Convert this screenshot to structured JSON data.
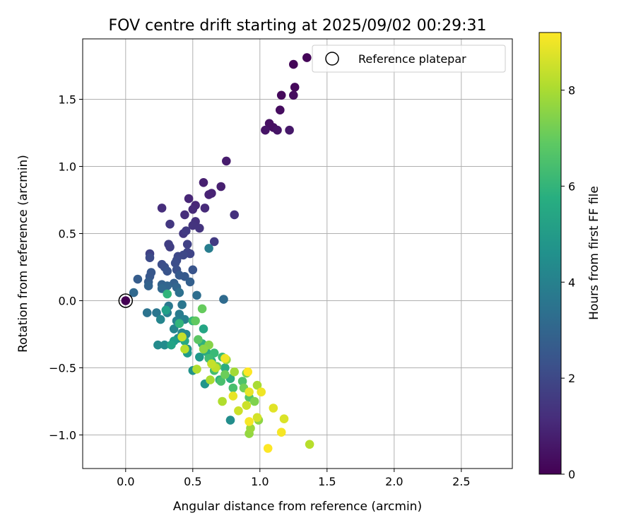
{
  "chart_data": {
    "type": "scatter",
    "title": "FOV centre drift starting at 2025/09/02 00:29:31",
    "xlabel": "Angular distance from reference (arcmin)",
    "ylabel": "Rotation from reference (arcmin)",
    "xlim": [
      -0.32,
      2.88
    ],
    "ylim": [
      -1.25,
      1.95
    ],
    "xticks": [
      0.0,
      0.5,
      1.0,
      1.5,
      2.0,
      2.5
    ],
    "xtick_labels": [
      "0.0",
      "0.5",
      "1.0",
      "1.5",
      "2.0",
      "2.5"
    ],
    "yticks": [
      -1.0,
      -0.5,
      0.0,
      0.5,
      1.0,
      1.5
    ],
    "ytick_labels": [
      "−1.0",
      "−0.5",
      "0.0",
      "0.5",
      "1.0",
      "1.5"
    ],
    "grid": true,
    "colormap": "viridis",
    "colorbar": {
      "label": "Hours from first FF file",
      "range": [
        0,
        9.2
      ],
      "ticks": [
        0,
        2,
        4,
        6,
        8
      ],
      "tick_labels": [
        "0",
        "2",
        "4",
        "6",
        "8"
      ]
    },
    "legend": {
      "position": "top-right",
      "entries": [
        "Reference platepar"
      ]
    },
    "reference_point": {
      "x": 0.0,
      "y": 0.0
    },
    "points": [
      {
        "x": 1.35,
        "y": 1.81,
        "h": 0.1
      },
      {
        "x": 1.25,
        "y": 1.76,
        "h": 0.1
      },
      {
        "x": 1.26,
        "y": 1.59,
        "h": 0.2
      },
      {
        "x": 1.16,
        "y": 1.53,
        "h": 0.2
      },
      {
        "x": 1.25,
        "y": 1.53,
        "h": 0.3
      },
      {
        "x": 1.15,
        "y": 1.42,
        "h": 0.3
      },
      {
        "x": 1.07,
        "y": 1.32,
        "h": 0.4
      },
      {
        "x": 1.1,
        "y": 1.29,
        "h": 0.4
      },
      {
        "x": 1.04,
        "y": 1.27,
        "h": 0.5
      },
      {
        "x": 1.13,
        "y": 1.27,
        "h": 0.5
      },
      {
        "x": 1.22,
        "y": 1.27,
        "h": 0.6
      },
      {
        "x": 0.75,
        "y": 1.04,
        "h": 0.7
      },
      {
        "x": 0.58,
        "y": 0.88,
        "h": 0.8
      },
      {
        "x": 0.71,
        "y": 0.85,
        "h": 0.8
      },
      {
        "x": 0.64,
        "y": 0.8,
        "h": 0.9
      },
      {
        "x": 0.62,
        "y": 0.79,
        "h": 0.9
      },
      {
        "x": 0.47,
        "y": 0.76,
        "h": 1.0
      },
      {
        "x": 0.52,
        "y": 0.71,
        "h": 1.0
      },
      {
        "x": 0.5,
        "y": 0.68,
        "h": 1.1
      },
      {
        "x": 0.59,
        "y": 0.69,
        "h": 1.1
      },
      {
        "x": 0.27,
        "y": 0.69,
        "h": 1.2
      },
      {
        "x": 0.44,
        "y": 0.64,
        "h": 1.2
      },
      {
        "x": 0.81,
        "y": 0.64,
        "h": 1.3
      },
      {
        "x": 0.52,
        "y": 0.59,
        "h": 1.3
      },
      {
        "x": 0.5,
        "y": 0.56,
        "h": 1.4
      },
      {
        "x": 0.55,
        "y": 0.54,
        "h": 1.4
      },
      {
        "x": 0.33,
        "y": 0.57,
        "h": 1.5
      },
      {
        "x": 0.43,
        "y": 0.5,
        "h": 1.5
      },
      {
        "x": 0.45,
        "y": 0.52,
        "h": 1.6
      },
      {
        "x": 0.66,
        "y": 0.44,
        "h": 1.6
      },
      {
        "x": 0.32,
        "y": 0.42,
        "h": 1.7
      },
      {
        "x": 0.33,
        "y": 0.4,
        "h": 1.7
      },
      {
        "x": 0.46,
        "y": 0.42,
        "h": 1.8
      },
      {
        "x": 0.18,
        "y": 0.35,
        "h": 1.8
      },
      {
        "x": 0.46,
        "y": 0.36,
        "h": 1.9
      },
      {
        "x": 0.48,
        "y": 0.35,
        "h": 1.9
      },
      {
        "x": 0.43,
        "y": 0.34,
        "h": 2.0
      },
      {
        "x": 0.39,
        "y": 0.33,
        "h": 2.0
      },
      {
        "x": 0.18,
        "y": 0.32,
        "h": 2.1
      },
      {
        "x": 0.38,
        "y": 0.3,
        "h": 2.1
      },
      {
        "x": 0.37,
        "y": 0.28,
        "h": 2.2
      },
      {
        "x": 0.27,
        "y": 0.27,
        "h": 2.2
      },
      {
        "x": 0.29,
        "y": 0.25,
        "h": 2.3
      },
      {
        "x": 0.38,
        "y": 0.23,
        "h": 2.3
      },
      {
        "x": 0.5,
        "y": 0.23,
        "h": 2.4
      },
      {
        "x": 0.31,
        "y": 0.22,
        "h": 2.4
      },
      {
        "x": 0.19,
        "y": 0.21,
        "h": 2.5
      },
      {
        "x": 0.18,
        "y": 0.18,
        "h": 2.5
      },
      {
        "x": 0.4,
        "y": 0.19,
        "h": 2.6
      },
      {
        "x": 0.44,
        "y": 0.18,
        "h": 2.6
      },
      {
        "x": 0.09,
        "y": 0.16,
        "h": 2.7
      },
      {
        "x": 0.17,
        "y": 0.14,
        "h": 2.7
      },
      {
        "x": 0.48,
        "y": 0.14,
        "h": 2.8
      },
      {
        "x": 0.36,
        "y": 0.13,
        "h": 2.8
      },
      {
        "x": 0.27,
        "y": 0.12,
        "h": 2.9
      },
      {
        "x": 0.17,
        "y": 0.11,
        "h": 2.9
      },
      {
        "x": 0.31,
        "y": 0.11,
        "h": 3.0
      },
      {
        "x": 0.38,
        "y": 0.1,
        "h": 3.0
      },
      {
        "x": 0.27,
        "y": 0.09,
        "h": 3.1
      },
      {
        "x": 0.06,
        "y": 0.06,
        "h": 3.1
      },
      {
        "x": 0.73,
        "y": 0.01,
        "h": 3.2
      },
      {
        "x": 0.53,
        "y": 0.04,
        "h": 3.3
      },
      {
        "x": 0.4,
        "y": 0.06,
        "h": 3.4
      },
      {
        "x": 0.16,
        "y": -0.09,
        "h": 3.5
      },
      {
        "x": 0.23,
        "y": -0.09,
        "h": 3.6
      },
      {
        "x": 0.42,
        "y": -0.03,
        "h": 3.6
      },
      {
        "x": 0.32,
        "y": -0.04,
        "h": 3.7
      },
      {
        "x": 0.4,
        "y": -0.1,
        "h": 3.8
      },
      {
        "x": 0.62,
        "y": 0.39,
        "h": 3.9
      },
      {
        "x": 0.31,
        "y": -0.09,
        "h": 4.0
      },
      {
        "x": 0.44,
        "y": -0.14,
        "h": 4.0
      },
      {
        "x": 0.38,
        "y": -0.15,
        "h": 4.1
      },
      {
        "x": 0.26,
        "y": -0.14,
        "h": 4.2
      },
      {
        "x": 0.36,
        "y": -0.21,
        "h": 4.2
      },
      {
        "x": 0.42,
        "y": -0.24,
        "h": 4.3
      },
      {
        "x": 0.45,
        "y": -0.25,
        "h": 4.3
      },
      {
        "x": 0.24,
        "y": -0.33,
        "h": 4.4
      },
      {
        "x": 0.29,
        "y": -0.33,
        "h": 4.4
      },
      {
        "x": 0.39,
        "y": -0.28,
        "h": 4.5
      },
      {
        "x": 0.78,
        "y": -0.89,
        "h": 4.5
      },
      {
        "x": 0.46,
        "y": -0.36,
        "h": 4.6
      },
      {
        "x": 0.5,
        "y": -0.52,
        "h": 4.7
      },
      {
        "x": 0.59,
        "y": -0.62,
        "h": 4.8
      },
      {
        "x": 0.55,
        "y": -0.42,
        "h": 4.9
      },
      {
        "x": 0.46,
        "y": -0.39,
        "h": 5.0
      },
      {
        "x": 0.36,
        "y": -0.3,
        "h": 5.1
      },
      {
        "x": 0.3,
        "y": -0.07,
        "h": 5.2
      },
      {
        "x": 0.34,
        "y": -0.33,
        "h": 5.3
      },
      {
        "x": 0.58,
        "y": -0.21,
        "h": 5.4
      },
      {
        "x": 0.44,
        "y": -0.3,
        "h": 5.5
      },
      {
        "x": 0.64,
        "y": -0.45,
        "h": 5.5
      },
      {
        "x": 0.6,
        "y": -0.38,
        "h": 5.6
      },
      {
        "x": 0.74,
        "y": -0.5,
        "h": 5.7
      },
      {
        "x": 0.78,
        "y": -0.58,
        "h": 5.7
      },
      {
        "x": 0.7,
        "y": -0.59,
        "h": 5.8
      },
      {
        "x": 0.57,
        "y": -0.32,
        "h": 5.9
      },
      {
        "x": 0.31,
        "y": 0.05,
        "h": 6.0
      },
      {
        "x": 0.4,
        "y": -0.17,
        "h": 6.0
      },
      {
        "x": 0.5,
        "y": -0.15,
        "h": 6.1
      },
      {
        "x": 0.66,
        "y": -0.39,
        "h": 6.2
      },
      {
        "x": 0.72,
        "y": -0.42,
        "h": 6.3
      },
      {
        "x": 0.62,
        "y": -0.43,
        "h": 6.3
      },
      {
        "x": 0.66,
        "y": -0.52,
        "h": 6.4
      },
      {
        "x": 0.71,
        "y": -0.6,
        "h": 6.5
      },
      {
        "x": 0.8,
        "y": -0.65,
        "h": 6.5
      },
      {
        "x": 0.87,
        "y": -0.6,
        "h": 6.6
      },
      {
        "x": 0.92,
        "y": -0.72,
        "h": 6.7
      },
      {
        "x": 0.54,
        "y": -0.29,
        "h": 6.8
      },
      {
        "x": 0.52,
        "y": -0.15,
        "h": 6.9
      },
      {
        "x": 0.57,
        "y": -0.06,
        "h": 7.0
      },
      {
        "x": 0.68,
        "y": -0.49,
        "h": 7.0
      },
      {
        "x": 0.74,
        "y": -0.55,
        "h": 7.1
      },
      {
        "x": 0.88,
        "y": -0.65,
        "h": 7.2
      },
      {
        "x": 0.9,
        "y": -0.54,
        "h": 7.3
      },
      {
        "x": 0.96,
        "y": -0.75,
        "h": 7.4
      },
      {
        "x": 0.62,
        "y": -0.33,
        "h": 7.5
      },
      {
        "x": 0.58,
        "y": -0.36,
        "h": 7.6
      },
      {
        "x": 0.99,
        "y": -0.89,
        "h": 7.6
      },
      {
        "x": 0.92,
        "y": -0.99,
        "h": 7.7
      },
      {
        "x": 0.93,
        "y": -0.95,
        "h": 7.8
      },
      {
        "x": 0.75,
        "y": -0.44,
        "h": 7.8
      },
      {
        "x": 0.81,
        "y": -0.53,
        "h": 7.9
      },
      {
        "x": 0.98,
        "y": -0.63,
        "h": 8.0
      },
      {
        "x": 0.63,
        "y": -0.59,
        "h": 8.0
      },
      {
        "x": 0.53,
        "y": -0.51,
        "h": 8.1
      },
      {
        "x": 0.72,
        "y": -0.75,
        "h": 8.1
      },
      {
        "x": 1.37,
        "y": -1.07,
        "h": 8.2
      },
      {
        "x": 0.44,
        "y": -0.36,
        "h": 8.2
      },
      {
        "x": 0.67,
        "y": -0.5,
        "h": 8.3
      },
      {
        "x": 0.64,
        "y": -0.47,
        "h": 8.4
      },
      {
        "x": 0.42,
        "y": -0.27,
        "h": 8.4
      },
      {
        "x": 0.84,
        "y": -0.82,
        "h": 8.5
      },
      {
        "x": 0.9,
        "y": -0.78,
        "h": 8.5
      },
      {
        "x": 0.98,
        "y": -0.87,
        "h": 8.6
      },
      {
        "x": 1.18,
        "y": -0.88,
        "h": 8.7
      },
      {
        "x": 1.1,
        "y": -0.8,
        "h": 8.8
      },
      {
        "x": 0.8,
        "y": -0.71,
        "h": 8.9
      },
      {
        "x": 0.92,
        "y": -0.68,
        "h": 8.9
      },
      {
        "x": 0.74,
        "y": -0.43,
        "h": 9.0
      },
      {
        "x": 1.01,
        "y": -0.68,
        "h": 9.0
      },
      {
        "x": 0.92,
        "y": -0.9,
        "h": 9.1
      },
      {
        "x": 1.16,
        "y": -0.98,
        "h": 9.1
      },
      {
        "x": 1.06,
        "y": -1.1,
        "h": 9.2
      },
      {
        "x": 0.91,
        "y": -0.53,
        "h": 9.2
      }
    ]
  }
}
